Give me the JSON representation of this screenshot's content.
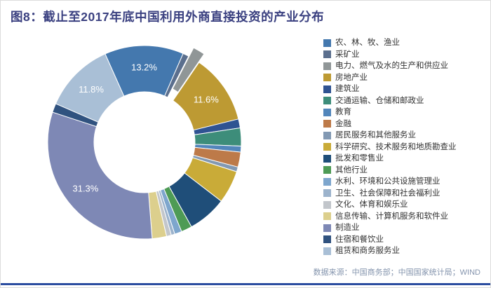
{
  "page": {
    "title": "图8：截止至2017年底中国利用外商直接投资的产业分布",
    "source": "数据来源：中国商务部；中国国家统计局；WIND",
    "title_color": "#3a4080",
    "source_color": "#8494ad",
    "accent_color": "#2b4da0",
    "frame_border_color": "#dcdcdc"
  },
  "chart_data": {
    "type": "pie",
    "subtype": "donut",
    "title": "截止至2017年底中国利用外商直接投资的产业分布",
    "unit": "%",
    "legend_position": "right",
    "start_angle_deg": -24,
    "slice_label_color": "#ffffff",
    "slices": [
      {
        "label": "农、林、牧、渔业",
        "value": 13.2,
        "display": "13.2%",
        "color": "#4478ae"
      },
      {
        "label": "采矿业",
        "value": 1.0,
        "color": "#5b6f8e"
      },
      {
        "label": "电力、燃气及水的生产和供应业",
        "value": 2.0,
        "color": "#909697",
        "exploded": true
      },
      {
        "label": "房地产业",
        "value": 11.6,
        "display": "11.6%",
        "color": "#bd9a33"
      },
      {
        "label": "建筑业",
        "value": 1.5,
        "color": "#2f5392"
      },
      {
        "label": "交通运输、仓储和邮政业",
        "value": 3.0,
        "color": "#3d8d7a"
      },
      {
        "label": "教育",
        "value": 1.0,
        "color": "#5286bb"
      },
      {
        "label": "金融",
        "value": 2.5,
        "color": "#bd7a49"
      },
      {
        "label": "居民服务和其他服务业",
        "value": 0.8,
        "color": "#8299b3"
      },
      {
        "label": "科学研究、技术服务和地质勘查业",
        "value": 5.5,
        "color": "#c9ab38"
      },
      {
        "label": "批发和零售业",
        "value": 6.5,
        "color": "#1f4e79"
      },
      {
        "label": "其他行业",
        "value": 1.8,
        "color": "#4e9b55"
      },
      {
        "label": "水利、环境和公共设施管理业",
        "value": 1.2,
        "color": "#7ea6cd"
      },
      {
        "label": "卫生、社会保障和社会福利业",
        "value": 0.6,
        "color": "#9cb3cc"
      },
      {
        "label": "文化、体育和娱乐业",
        "value": 0.8,
        "color": "#c2c6cb"
      },
      {
        "label": "信息传输、计算机服务和软件业",
        "value": 2.4,
        "color": "#dccf8d"
      },
      {
        "label": "制造业",
        "value": 31.3,
        "display": "31.3%",
        "color": "#7e88b5"
      },
      {
        "label": "住宿和餐饮业",
        "value": 1.5,
        "color": "#30527f"
      },
      {
        "label": "租赁和商务服务业",
        "value": 11.8,
        "display": "11.8%",
        "color": "#a9bfd6"
      }
    ]
  }
}
